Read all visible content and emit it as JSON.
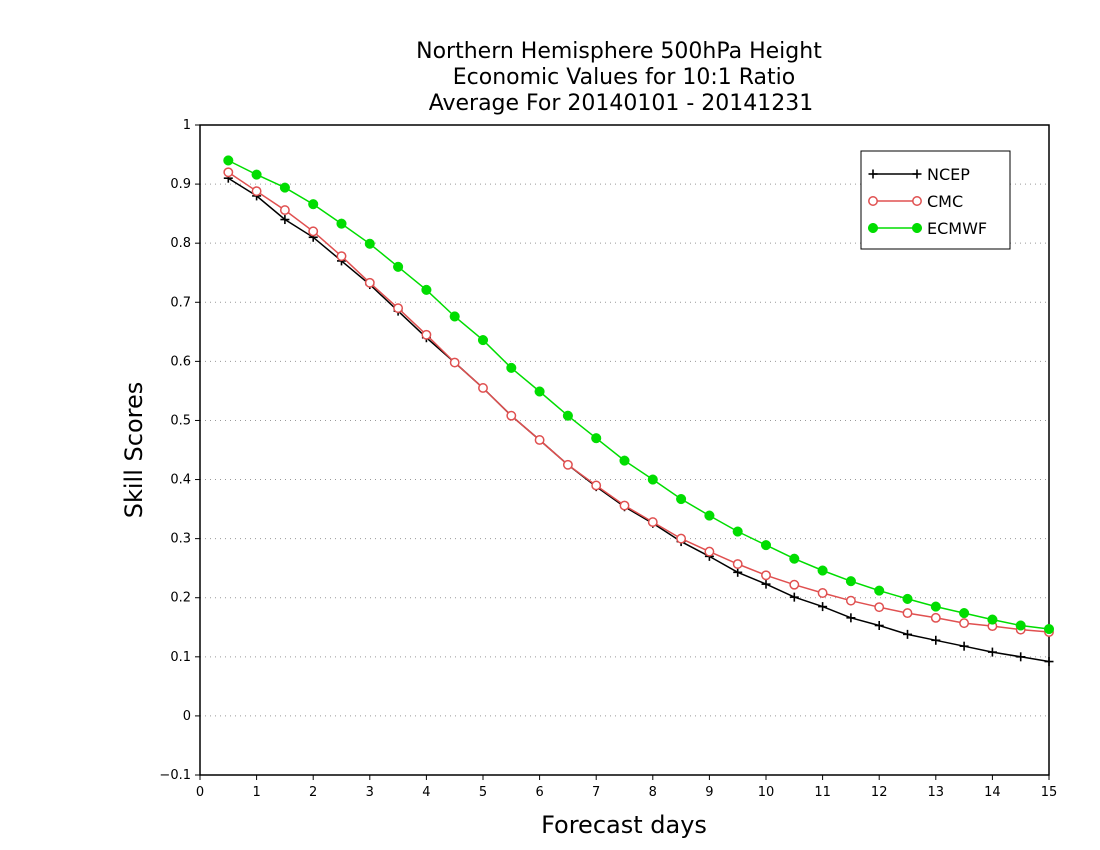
{
  "chart_data": {
    "type": "line",
    "title": [
      "Northern Hemisphere 500hPa Height",
      "Economic Values for 10:1 Ratio",
      "Average For 20140101 - 20141231"
    ],
    "xlabel": "Forecast days",
    "ylabel": "Skill Scores",
    "xlim": [
      0,
      15
    ],
    "ylim": [
      -0.1,
      1
    ],
    "x_ticks": [
      "0",
      "1",
      "2",
      "3",
      "4",
      "5",
      "6",
      "7",
      "8",
      "9",
      "10",
      "11",
      "12",
      "13",
      "14",
      "15"
    ],
    "y_ticks": [
      "−0.1",
      "0",
      "0.1",
      "0.2",
      "0.3",
      "0.4",
      "0.5",
      "0.6",
      "0.7",
      "0.8",
      "0.9",
      "1"
    ],
    "grid": "horizontal dotted",
    "legend_position": "top-right",
    "x": [
      0.5,
      1,
      1.5,
      2,
      2.5,
      3,
      3.5,
      4,
      4.5,
      5,
      5.5,
      6,
      6.5,
      7,
      7.5,
      8,
      8.5,
      9,
      9.5,
      10,
      10.5,
      11,
      11.5,
      12,
      12.5,
      13,
      13.5,
      14,
      14.5,
      15
    ],
    "series": [
      {
        "name": "NCEP",
        "color": "#000000",
        "marker": "plus",
        "values": [
          0.91,
          0.88,
          0.84,
          0.81,
          0.77,
          0.73,
          0.685,
          0.64,
          0.598,
          0.555,
          0.508,
          0.467,
          0.425,
          0.388,
          0.354,
          0.326,
          0.295,
          0.27,
          0.243,
          0.223,
          0.201,
          0.185,
          0.166,
          0.153,
          0.138,
          0.128,
          0.118,
          0.108,
          0.1,
          0.092
        ]
      },
      {
        "name": "CMC",
        "color": "#e05050",
        "marker": "open-circle",
        "values": [
          0.92,
          0.888,
          0.856,
          0.82,
          0.778,
          0.733,
          0.69,
          0.645,
          0.598,
          0.555,
          0.508,
          0.467,
          0.425,
          0.39,
          0.356,
          0.328,
          0.3,
          0.278,
          0.257,
          0.238,
          0.222,
          0.208,
          0.195,
          0.184,
          0.174,
          0.166,
          0.157,
          0.152,
          0.146,
          0.142
        ]
      },
      {
        "name": "ECMWF",
        "color": "#00dd00",
        "marker": "filled-circle",
        "values": [
          0.94,
          0.916,
          0.894,
          0.866,
          0.833,
          0.799,
          0.76,
          0.721,
          0.676,
          0.636,
          0.589,
          0.549,
          0.508,
          0.47,
          0.432,
          0.4,
          0.367,
          0.339,
          0.312,
          0.289,
          0.266,
          0.246,
          0.228,
          0.212,
          0.198,
          0.185,
          0.174,
          0.163,
          0.153,
          0.147
        ]
      }
    ]
  }
}
